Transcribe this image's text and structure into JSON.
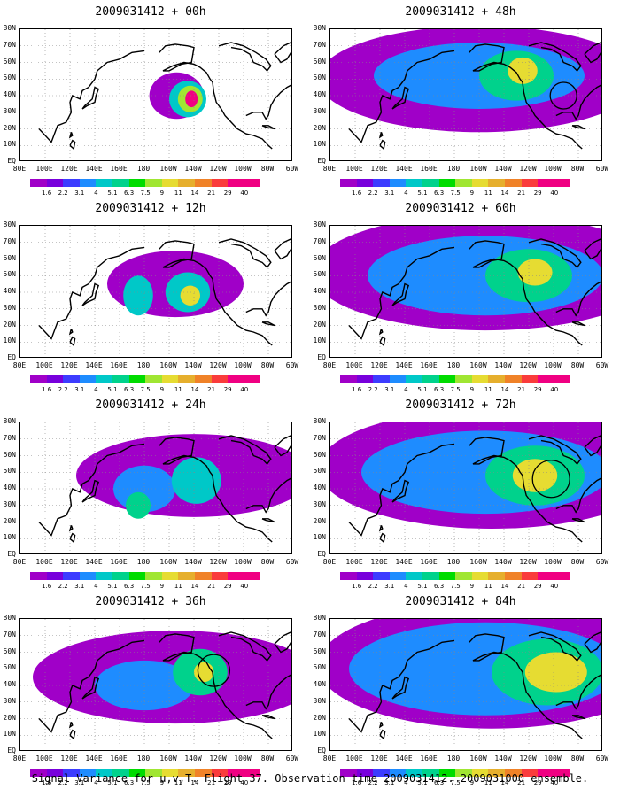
{
  "chart_data": {
    "type": "heatmap",
    "caption": "Signal Variance for u,v,T. Flight 37. Observation time 2009031412. 2009031000 ensemble.",
    "x_ticks": [
      "80E",
      "100E",
      "120E",
      "140E",
      "160E",
      "180",
      "160W",
      "140W",
      "120W",
      "100W",
      "80W",
      "60W"
    ],
    "y_ticks": [
      "80N",
      "70N",
      "60N",
      "50N",
      "40N",
      "30N",
      "20N",
      "10N",
      "EQ"
    ],
    "colorbar": {
      "levels": [
        "1.6",
        "2.2",
        "3.1",
        "4",
        "5.1",
        "6.3",
        "7.5",
        "9",
        "11",
        "14",
        "21",
        "29",
        "40"
      ],
      "colors": [
        "#a000c8",
        "#7800dc",
        "#3c3cff",
        "#1e8cff",
        "#00c8c8",
        "#00d28c",
        "#00dc00",
        "#a0e632",
        "#e6dc32",
        "#e6af2d",
        "#f08228",
        "#fa3c3c",
        "#f00082"
      ]
    },
    "panels": [
      {
        "title": "2009031412 + 00h",
        "blobs": [
          {
            "lon": 206,
            "lat": 40,
            "rx": 22,
            "ry": 14,
            "level": 0
          },
          {
            "lon": 215,
            "lat": 38,
            "rx": 15,
            "ry": 11,
            "level": 4
          },
          {
            "lon": 217,
            "lat": 38,
            "rx": 10,
            "ry": 8,
            "level": 7
          },
          {
            "lon": 218,
            "lat": 38,
            "rx": 5,
            "ry": 5,
            "level": 12
          }
        ],
        "ellipse": null
      },
      {
        "title": "2009031412 + 12h",
        "blobs": [
          {
            "lon": 205,
            "lat": 45,
            "rx": 55,
            "ry": 20,
            "level": 0
          },
          {
            "lon": 175,
            "lat": 38,
            "rx": 12,
            "ry": 12,
            "level": 4
          },
          {
            "lon": 215,
            "lat": 40,
            "rx": 18,
            "ry": 12,
            "level": 4
          },
          {
            "lon": 217,
            "lat": 38,
            "rx": 8,
            "ry": 6,
            "level": 8
          }
        ],
        "ellipse": null
      },
      {
        "title": "2009031412 + 24h",
        "blobs": [
          {
            "lon": 220,
            "lat": 48,
            "rx": 95,
            "ry": 25,
            "level": 0
          },
          {
            "lon": 180,
            "lat": 40,
            "rx": 25,
            "ry": 14,
            "level": 3
          },
          {
            "lon": 222,
            "lat": 45,
            "rx": 20,
            "ry": 14,
            "level": 4
          },
          {
            "lon": 175,
            "lat": 30,
            "rx": 10,
            "ry": 8,
            "level": 5
          }
        ],
        "ellipse": null
      },
      {
        "title": "2009031412 + 36h",
        "blobs": [
          {
            "lon": 205,
            "lat": 45,
            "rx": 115,
            "ry": 28,
            "level": 0
          },
          {
            "lon": 180,
            "lat": 40,
            "rx": 40,
            "ry": 15,
            "level": 3
          },
          {
            "lon": 225,
            "lat": 48,
            "rx": 22,
            "ry": 14,
            "level": 5
          },
          {
            "lon": 228,
            "lat": 48,
            "rx": 8,
            "ry": 6,
            "level": 8
          }
        ],
        "ellipse": {
          "lon": 236,
          "lat": 49,
          "r": 6
        }
      },
      {
        "title": "2009031412 + 48h",
        "blobs": [
          {
            "lon": 200,
            "lat": 50,
            "rx": 130,
            "ry": 32,
            "level": 0
          },
          {
            "lon": 200,
            "lat": 52,
            "rx": 85,
            "ry": 20,
            "level": 3
          },
          {
            "lon": 230,
            "lat": 52,
            "rx": 30,
            "ry": 15,
            "level": 5
          },
          {
            "lon": 235,
            "lat": 55,
            "rx": 12,
            "ry": 8,
            "level": 8
          }
        ],
        "ellipse": {
          "lon": 268,
          "lat": 40,
          "r": 5
        }
      },
      {
        "title": "2009031412 + 60h",
        "blobs": [
          {
            "lon": 205,
            "lat": 52,
            "rx": 140,
            "ry": 35,
            "level": 0
          },
          {
            "lon": 205,
            "lat": 50,
            "rx": 95,
            "ry": 24,
            "level": 3
          },
          {
            "lon": 240,
            "lat": 50,
            "rx": 35,
            "ry": 16,
            "level": 5
          },
          {
            "lon": 245,
            "lat": 52,
            "rx": 14,
            "ry": 8,
            "level": 8
          }
        ],
        "ellipse": null
      },
      {
        "title": "2009031412 + 72h",
        "blobs": [
          {
            "lon": 210,
            "lat": 52,
            "rx": 140,
            "ry": 36,
            "level": 0
          },
          {
            "lon": 205,
            "lat": 50,
            "rx": 100,
            "ry": 25,
            "level": 3
          },
          {
            "lon": 245,
            "lat": 48,
            "rx": 40,
            "ry": 18,
            "level": 5
          },
          {
            "lon": 245,
            "lat": 48,
            "rx": 18,
            "ry": 10,
            "level": 8
          }
        ],
        "ellipse": {
          "lon": 258,
          "lat": 46,
          "r": 7
        }
      },
      {
        "title": "2009031412 + 84h",
        "blobs": [
          {
            "lon": 210,
            "lat": 52,
            "rx": 140,
            "ry": 38,
            "level": 0
          },
          {
            "lon": 205,
            "lat": 50,
            "rx": 110,
            "ry": 28,
            "level": 3
          },
          {
            "lon": 255,
            "lat": 48,
            "rx": 45,
            "ry": 20,
            "level": 5
          },
          {
            "lon": 262,
            "lat": 48,
            "rx": 25,
            "ry": 12,
            "level": 8
          }
        ],
        "ellipse": null
      }
    ]
  }
}
